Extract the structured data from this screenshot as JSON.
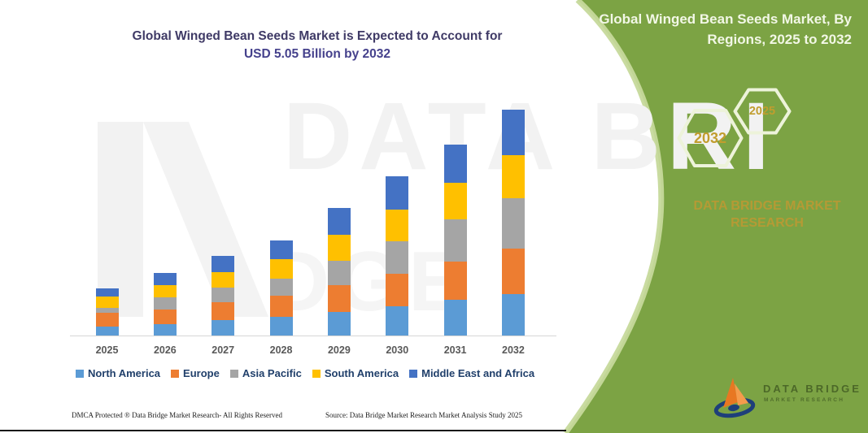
{
  "header": {
    "title_line1": "Global Winged Bean Seeds Market is Expected to Account for",
    "title_line2": "USD 5.05 Billion by 2032"
  },
  "right_panel": {
    "heading_line1": "Global Winged Bean Seeds Market, By",
    "heading_line2": "Regions, 2025 to 2032",
    "hexagons": {
      "end_year": "2032",
      "start_year": "2025"
    },
    "brand_line1": "DATA BRIDGE MARKET",
    "brand_line2": "RESEARCH",
    "logo_line1": "DATA BRIDGE",
    "logo_line2": "MARKET RESEARCH",
    "colors": {
      "panel_green": "#7ca344",
      "accent_light_green": "#c6d99b",
      "gold": "#c19d2e"
    }
  },
  "watermark": {
    "row1": "DATA BRI",
    "row2": "DGE"
  },
  "chart_data": {
    "type": "bar",
    "stacked": true,
    "title": "Global Winged Bean Seeds Market is Expected to Account for USD 5.05 Billion by 2032",
    "unit": "USD Billion",
    "xlabel": "",
    "ylabel": "",
    "grid": false,
    "legend_position": "bottom",
    "ylim": [
      0,
      5.5
    ],
    "categories": [
      "2025",
      "2026",
      "2027",
      "2028",
      "2029",
      "2030",
      "2031",
      "2032"
    ],
    "series": [
      {
        "name": "North America",
        "color": "#5B9BD5",
        "values": [
          0.2,
          0.25,
          0.35,
          0.42,
          0.52,
          0.65,
          0.8,
          0.92
        ]
      },
      {
        "name": "Europe",
        "color": "#ED7D31",
        "values": [
          0.3,
          0.33,
          0.4,
          0.47,
          0.6,
          0.74,
          0.86,
          1.02
        ]
      },
      {
        "name": "Asia Pacific",
        "color": "#A5A5A5",
        "values": [
          0.12,
          0.28,
          0.33,
          0.38,
          0.55,
          0.72,
          0.94,
          1.14
        ]
      },
      {
        "name": "South America",
        "color": "#FFC000",
        "values": [
          0.25,
          0.26,
          0.34,
          0.43,
          0.58,
          0.7,
          0.82,
          0.96
        ]
      },
      {
        "name": "Middle East and Africa",
        "color": "#4472C4",
        "values": [
          0.18,
          0.28,
          0.36,
          0.42,
          0.61,
          0.75,
          0.85,
          1.01
        ]
      }
    ],
    "totals": [
      1.05,
      1.4,
      1.78,
      2.12,
      2.86,
      3.56,
      4.27,
      5.05
    ]
  },
  "footer": {
    "left": "DMCA Protected ® Data Bridge Market Research-  All Rights Reserved",
    "right": "Source: Data Bridge Market Research  Market Analysis Study 2025"
  }
}
